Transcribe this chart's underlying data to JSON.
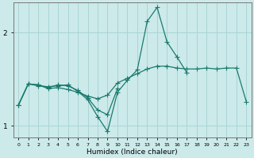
{
  "xlabel": "Humidex (Indice chaleur)",
  "background_color": "#cceaea",
  "grid_color": "#aad4d4",
  "line_color": "#1a7a6e",
  "xlim_min": -0.5,
  "xlim_max": 23.5,
  "ylim_min": 0.88,
  "ylim_max": 2.32,
  "yticks": [
    1,
    2
  ],
  "xticks": [
    0,
    1,
    2,
    3,
    4,
    5,
    6,
    7,
    8,
    9,
    10,
    11,
    12,
    13,
    14,
    15,
    16,
    17,
    18,
    19,
    20,
    21,
    22,
    23
  ],
  "line1_x": [
    0,
    1,
    2,
    3,
    4,
    5,
    6,
    7,
    8,
    9,
    10,
    11,
    12,
    13,
    14,
    15,
    16,
    17,
    18,
    19,
    20,
    21,
    22,
    23
  ],
  "line1_y": [
    1.22,
    1.45,
    1.44,
    1.4,
    1.41,
    1.39,
    1.36,
    1.32,
    1.29,
    1.33,
    1.46,
    1.51,
    1.56,
    1.61,
    1.64,
    1.64,
    1.62,
    1.61,
    1.61,
    1.62,
    1.61,
    1.62,
    1.62,
    1.26
  ],
  "line2_x": [
    0,
    1,
    2,
    3,
    4,
    5,
    6,
    7,
    8,
    9,
    10,
    11,
    12,
    13,
    14,
    15,
    16,
    17
  ],
  "line2_y": [
    1.22,
    1.45,
    1.43,
    1.42,
    1.43,
    1.44,
    1.37,
    1.28,
    1.1,
    0.94,
    1.36,
    1.49,
    1.6,
    2.12,
    2.27,
    1.9,
    1.74,
    1.57
  ],
  "line3_x": [
    0,
    1,
    2,
    3,
    4,
    5,
    6,
    7,
    8,
    9,
    10
  ],
  "line3_y": [
    1.22,
    1.45,
    1.44,
    1.41,
    1.44,
    1.43,
    1.38,
    1.3,
    1.17,
    1.12,
    1.4
  ]
}
